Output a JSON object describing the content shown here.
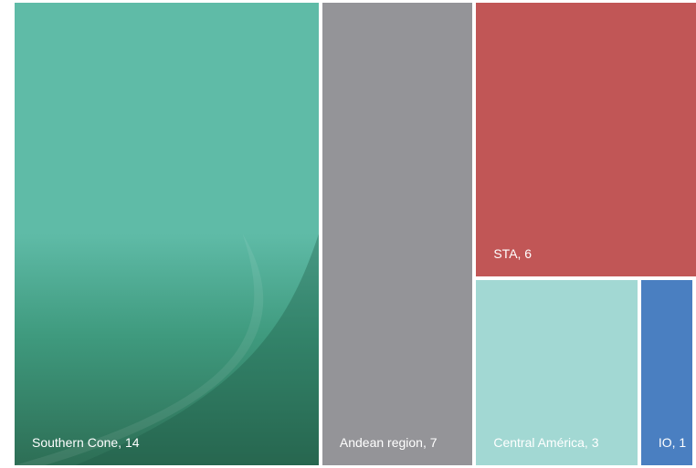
{
  "chart_data": {
    "type": "treemap",
    "title": "",
    "items": [
      {
        "label": "Southern Cone, 14",
        "name": "Southern Cone",
        "value": 14,
        "color": "#5fbba7"
      },
      {
        "label": "Andean region, 7",
        "name": "Andean region",
        "value": 7,
        "color": "#949498"
      },
      {
        "label": "STA, 6",
        "name": "STA",
        "value": 6,
        "color": "#c15656"
      },
      {
        "label": "Central América, 3",
        "name": "Central América",
        "value": 3,
        "color": "#a2d8d3"
      },
      {
        "label": "IO, 1",
        "name": "IO",
        "value": 1,
        "color": "#4a7fc1"
      }
    ]
  }
}
